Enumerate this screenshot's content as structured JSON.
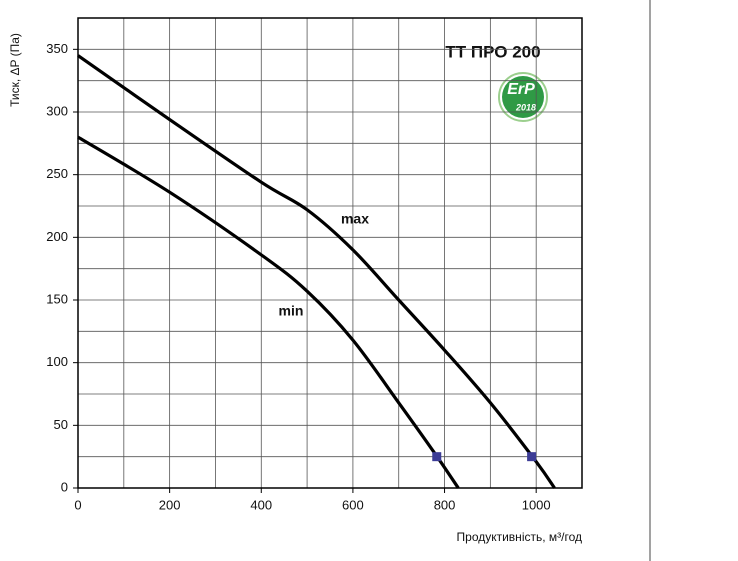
{
  "chart_data": {
    "type": "line",
    "title": "TT ПРО 200",
    "badge": {
      "text": "ErP",
      "year": "2018"
    },
    "x_label": "Продуктивність, м³/год",
    "y_label": "Тиск, ΔP (Па)",
    "xlim": [
      0,
      1100
    ],
    "ylim": [
      0,
      375
    ],
    "xticks": [
      0,
      200,
      400,
      600,
      800,
      1000
    ],
    "yticks": [
      0,
      50,
      100,
      150,
      200,
      250,
      300,
      350
    ],
    "grid": true,
    "series": [
      {
        "name": "max",
        "color": "#000000",
        "x": [
          0,
          200,
          400,
          500,
          600,
          700,
          800,
          900,
          1000,
          1040
        ],
        "values": [
          345,
          294,
          244,
          222,
          190,
          150,
          110,
          68,
          21,
          0
        ]
      },
      {
        "name": "min",
        "color": "#000000",
        "x": [
          0,
          200,
          400,
          500,
          600,
          700,
          780,
          830
        ],
        "values": [
          280,
          236,
          186,
          157,
          118,
          68,
          27,
          0
        ]
      }
    ],
    "points": {
      "color": "#3c3c96",
      "x": [
        783,
        990
      ],
      "values": [
        25,
        25
      ]
    }
  }
}
